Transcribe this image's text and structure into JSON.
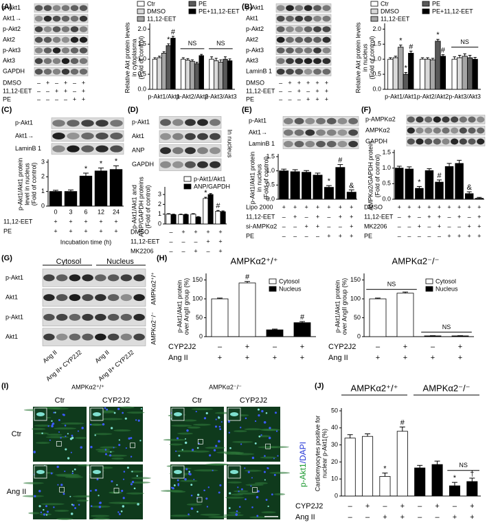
{
  "panel_letters": [
    "(A)",
    "(B)",
    "(C)",
    "(D)",
    "(E)",
    "(F)",
    "(G)",
    "(H)",
    "(I)",
    "(J)"
  ],
  "blots": [
    {
      "rows": [
        "p-Akt1",
        "Akt1→",
        "p-Akt2",
        "Akt2",
        "p-Akt3",
        "Akt3",
        "GAPDH"
      ],
      "conditions": [
        {
          "label": "DMSO",
          "values": [
            "–",
            "+",
            "–",
            "+",
            "–",
            "+"
          ]
        },
        {
          "label": "11,12-EET",
          "values": [
            "–",
            "–",
            "+",
            "+",
            "–",
            "+"
          ]
        },
        {
          "label": "PE",
          "values": [
            "–",
            "–",
            "–",
            "–",
            "+",
            "+"
          ]
        }
      ]
    },
    {
      "rows": [
        "p-Akt1",
        "Akt1",
        "p-Akt2",
        "Akt2",
        "p-Akt3",
        "Akt3",
        "LaminB 1"
      ],
      "conditions": [
        {
          "label": "DMSO",
          "values": [
            "–",
            "+",
            "+",
            "+",
            "+",
            "+"
          ]
        },
        {
          "label": "11,12-EET",
          "values": [
            "–",
            "–",
            "+",
            "–",
            "+",
            "+"
          ]
        },
        {
          "label": "PE",
          "values": [
            "–",
            "–",
            "–",
            "+",
            "+",
            "+"
          ]
        }
      ]
    },
    {
      "rows": [
        "p-Akt1",
        "Akt1→",
        "LaminB 1"
      ]
    },
    {
      "rows": [
        "p-Akt1",
        "Akt1",
        "ANP",
        "GAPDH"
      ],
      "note": "In nucleus"
    },
    {
      "rows": [
        "p-Akt1",
        "Akt1→",
        "LaminB 1"
      ]
    },
    {
      "rows": [
        "p-AMPKα2",
        "AMPKα2",
        "GAPDH"
      ]
    },
    {
      "rows": [
        "p-Akt1",
        "Akt1",
        "p-Akt1",
        "Akt1"
      ],
      "headers": [
        "Cytosol",
        "Nucleus"
      ],
      "groups": [
        "AMPKα2⁺/⁺",
        "AMPKα2⁻/⁻"
      ],
      "lane_labels": [
        "Ang II",
        "Ang II+ CYP2J2",
        "Ang II",
        "Ang II+ CYP2J2"
      ]
    }
  ],
  "chart_data": [
    {
      "type": "bar",
      "ylabel": [
        "Relative Akt protein levels",
        "in cytoplasma",
        "(Fold of control)"
      ],
      "categories": [
        "p-Akt1/Akt1",
        "p-Akt2/Akt2",
        "p-Akt3/Akt3"
      ],
      "ylim": [
        0,
        2.1
      ],
      "yticks": [
        {
          "value": 0,
          "label": "0.0"
        },
        0.5,
        {
          "value": 1,
          "label": "1.0"
        },
        1.5,
        {
          "value": 2,
          "label": "2.0"
        }
      ],
      "series": [
        {
          "name": "Ctr",
          "color": "#ffffff",
          "values": [
            1.0,
            1.0,
            1.0
          ],
          "errors": [
            0.05,
            0.05,
            0.08
          ]
        },
        {
          "name": "DMSO",
          "color": "#d9d9d9",
          "values": [
            1.05,
            0.97,
            0.95
          ],
          "errors": [
            0.05,
            0.05,
            0.08
          ]
        },
        {
          "name": "11,12-EET",
          "color": "#a6a6a6",
          "values": [
            1.2,
            0.93,
            0.9
          ],
          "errors": [
            0.05,
            0.05,
            0.08
          ]
        },
        {
          "name": "PE",
          "color": "#595959",
          "values": [
            1.45,
            0.85,
            1.0
          ],
          "errors": [
            0.06,
            0.05,
            0.08
          ],
          "marks": [
            "*",
            null,
            null
          ]
        },
        {
          "name": "PE+11,12-EET",
          "color": "#000000",
          "values": [
            1.7,
            1.12,
            0.95
          ],
          "errors": [
            0.06,
            0.04,
            0.06
          ],
          "marks": [
            "#",
            null,
            null
          ]
        }
      ],
      "brackets": [
        "NS",
        "NS"
      ]
    },
    {
      "type": "bar",
      "ylabel": [
        "Relative Akt protein levels",
        "in nucleus",
        "(Fold of control)"
      ],
      "categories": [
        "p-Akt1/Akt1",
        "p-Akt2/Akt2",
        "p-Akt3/Akt3"
      ],
      "ylim": [
        0,
        2.1
      ],
      "yticks": [
        {
          "value": 0,
          "label": "0.0"
        },
        0.5,
        {
          "value": 1,
          "label": "1.0"
        },
        1.5,
        {
          "value": 2,
          "label": "2.0"
        }
      ],
      "series": [
        {
          "name": "Ctr",
          "color": "#ffffff",
          "values": [
            1.0,
            1.0,
            1.0
          ],
          "errors": [
            0.05,
            0.05,
            0.08
          ]
        },
        {
          "name": "DMSO",
          "color": "#d9d9d9",
          "values": [
            1.05,
            1.0,
            1.05
          ],
          "errors": [
            0.05,
            0.05,
            0.08
          ]
        },
        {
          "name": "11,12-EET",
          "color": "#a6a6a6",
          "values": [
            1.4,
            0.98,
            1.1
          ],
          "errors": [
            0.07,
            0.05,
            0.08
          ],
          "marks": [
            "*",
            null,
            null
          ]
        },
        {
          "name": "PE",
          "color": "#595959",
          "values": [
            0.5,
            1.6,
            1.05
          ],
          "errors": [
            0.06,
            0.06,
            0.08
          ],
          "marks": [
            "*",
            "*",
            null
          ]
        },
        {
          "name": "PE+11,12-EET",
          "color": "#000000",
          "values": [
            1.2,
            1.1,
            1.0
          ],
          "errors": [
            0.07,
            0.05,
            0.06
          ],
          "marks": [
            "#",
            "#",
            null
          ]
        }
      ],
      "brackets": [
        "NS"
      ]
    },
    {
      "type": "bar",
      "ylabel": [
        "p-Akt1/Akt1 protein",
        "level in nucleus",
        "(Fold of control)"
      ],
      "categories": [
        0,
        3,
        6,
        12,
        24
      ],
      "ylim": [
        0,
        3
      ],
      "yticks": [
        0,
        1,
        2,
        3
      ],
      "series": [
        {
          "color": "#000000",
          "values": [
            1.0,
            1.0,
            2.05,
            2.4,
            2.5
          ],
          "errors": [
            0.08,
            0.1,
            0.2,
            0.2,
            0.25
          ],
          "marks": [
            null,
            null,
            "*",
            "*",
            "*"
          ]
        }
      ],
      "conditions": [
        {
          "label": "11,12-EET",
          "values": [
            "+",
            "+",
            "+",
            "+",
            "+"
          ]
        },
        {
          "label": "PE",
          "values": [
            "+",
            "+",
            "+",
            "+",
            "+"
          ]
        }
      ],
      "xlabel": "Incubation time (h)"
    },
    {
      "type": "bar",
      "ylabel": [
        "p-Akt1/Akt1 and",
        "ANP/GAPDH proteins",
        "(Fold of control)"
      ],
      "ylim": [
        0,
        3.5
      ],
      "yticks": [
        0,
        1,
        2,
        3
      ],
      "series": [
        {
          "name": "p-Akt1/Akt1",
          "color": "#ffffff",
          "values": [
            1.0,
            0.95,
            1.0,
            2.6,
            1.3
          ],
          "errors": [
            0.05,
            0.05,
            0.05,
            0.12,
            0.08
          ],
          "marks": [
            null,
            null,
            null,
            "*",
            "#"
          ]
        },
        {
          "name": "ANP/GAPDH",
          "color": "#000000",
          "values": [
            0.95,
            0.95,
            0.7,
            3.0,
            1.25
          ],
          "errors": [
            0.05,
            0.05,
            0.05,
            0.1,
            0.08
          ]
        }
      ],
      "conditions": [
        {
          "label": "DMSO",
          "values": [
            "–",
            "+",
            "+",
            "+",
            "+"
          ]
        },
        {
          "label": "11,12-EET",
          "values": [
            "–",
            "–",
            "–",
            "+",
            "+"
          ]
        },
        {
          "label": "MK2206",
          "values": [
            "–",
            "–",
            "+",
            "–",
            "+"
          ]
        }
      ]
    },
    {
      "type": "bar",
      "ylabel": [
        "p-Akt1/Akt1 protein",
        "in nucleus",
        "(Fold of control)"
      ],
      "ylim": [
        0,
        1.5
      ],
      "yticks": [
        {
          "value": 0,
          "label": "0.0"
        },
        0.5,
        {
          "value": 1,
          "label": "1.0"
        },
        1.5
      ],
      "series": [
        {
          "color": "#000000",
          "values": [
            1.0,
            0.97,
            0.95,
            0.85,
            0.42,
            1.12,
            0.25
          ],
          "errors": [
            0.06,
            0.07,
            0.06,
            0.07,
            0.06,
            0.1,
            0.08
          ],
          "marks": [
            null,
            null,
            null,
            null,
            "*",
            "#",
            "&"
          ]
        }
      ],
      "conditions": [
        {
          "label": "Lipo 2000",
          "values": [
            "+",
            "+",
            "+",
            "+",
            "+",
            "+",
            "+"
          ]
        },
        {
          "label": "11,12-EET",
          "values": [
            "–",
            "+",
            "–",
            "+",
            "–",
            "+",
            "+"
          ]
        },
        {
          "label": "si-AMPKα2",
          "values": [
            "–",
            "–",
            "+",
            "+",
            "–",
            "–",
            "+"
          ]
        },
        {
          "label": "PE",
          "values": [
            "–",
            "–",
            "–",
            "–",
            "+",
            "+",
            "+"
          ]
        }
      ]
    },
    {
      "type": "bar",
      "ylabel": [
        "AMPKα2/GAPDH protein",
        "(Fold of control)"
      ],
      "ylim": [
        0,
        1.5
      ],
      "yticks": [
        {
          "value": 0,
          "label": "0.0"
        },
        0.5,
        {
          "value": 1,
          "label": "1.0"
        },
        1.5
      ],
      "series": [
        {
          "color": "#000000",
          "values": [
            1.0,
            0.97,
            0.35,
            0.92,
            0.55,
            1.05,
            1.15,
            0.18,
            0.03
          ],
          "errors": [
            0.06,
            0.07,
            0.06,
            0.06,
            0.07,
            0.1,
            0.1,
            0.06,
            0.03
          ],
          "marks": [
            null,
            null,
            "*",
            null,
            "#",
            null,
            null,
            "&",
            null
          ]
        }
      ],
      "conditions": [
        {
          "label": "DMSO",
          "values": [
            "+",
            "+",
            "+",
            "+",
            "+",
            "+",
            "+",
            "+",
            "+"
          ]
        },
        {
          "label": "11,12-EET",
          "values": [
            "–",
            "+",
            "–",
            "+",
            "+",
            "–",
            "+",
            "–",
            "+"
          ]
        },
        {
          "label": "MK2206",
          "values": [
            "–",
            "–",
            "+",
            "–",
            "+",
            "–",
            "–",
            "+",
            "+"
          ]
        },
        {
          "label": "PE",
          "values": [
            "–",
            "–",
            "–",
            "–",
            "–",
            "+",
            "+",
            "+",
            "+"
          ]
        }
      ]
    },
    {
      "type": "bar",
      "layout": "single",
      "titles": [
        "AMPKα2⁺/⁺"
      ],
      "ylabel": [
        "p-Akt1/Akt1 protein",
        "over AngII group (%)"
      ],
      "ylim": [
        0,
        160
      ],
      "yticks": [
        0,
        50,
        100,
        150
      ],
      "series": [
        {
          "name": "Cytosol",
          "color": "#ffffff",
          "values": [
            100,
            142,
            null,
            null
          ],
          "errors": [
            2,
            4,
            null,
            null
          ],
          "marks": [
            null,
            "#",
            null,
            null
          ]
        },
        {
          "name": "Nucleus",
          "color": "#000000",
          "values": [
            null,
            null,
            18,
            37
          ],
          "errors": [
            null,
            null,
            2,
            3
          ],
          "marks": [
            null,
            null,
            null,
            "#"
          ]
        }
      ],
      "conditions": [
        {
          "label": "CYP2J2",
          "values": [
            "–",
            "+",
            "–",
            "+"
          ]
        },
        {
          "label": "Ang II",
          "values": [
            "+",
            "+",
            "+",
            "+"
          ]
        }
      ]
    },
    {
      "type": "bar",
      "layout": "single",
      "titles": [
        "AMPKα2⁻/⁻"
      ],
      "ylabel": [
        "p-Akt1/Akt1 protein",
        "over AngII group (%)"
      ],
      "ylim": [
        0,
        160
      ],
      "yticks": [
        0,
        50,
        100,
        150
      ],
      "series": [
        {
          "name": "Cytosol",
          "color": "#ffffff",
          "values": [
            100,
            115,
            null,
            null
          ],
          "errors": [
            2,
            3,
            null,
            null
          ]
        },
        {
          "name": "Nucleus",
          "color": "#000000",
          "values": [
            null,
            null,
            2,
            2
          ],
          "errors": [
            null,
            null,
            0.5,
            0.5
          ]
        }
      ],
      "brackets": [
        "NS",
        "NS"
      ],
      "conditions": [
        {
          "label": "CYP2J2",
          "values": [
            "–",
            "+",
            "–",
            "+"
          ]
        },
        {
          "label": "Ang II",
          "values": [
            "+",
            "+",
            "+",
            "+"
          ]
        }
      ]
    },
    {
      "type": "bar",
      "layout": "single",
      "titles": [
        "AMPKα2⁺/⁺",
        "AMPKα2⁻/⁻"
      ],
      "ylabel": [
        "Cardiomyocytes positive for",
        "nuclear p-Akt1(%)"
      ],
      "ylim": [
        0,
        50
      ],
      "yticks": [
        0,
        10,
        20,
        30,
        40,
        50
      ],
      "series": [
        {
          "color": "#ffffff",
          "values": [
            34,
            35,
            11.5,
            38,
            null,
            null,
            null,
            null
          ],
          "errors": [
            2,
            1.5,
            2,
            2.5,
            null,
            null,
            null,
            null
          ],
          "marks": [
            null,
            null,
            "*",
            "#",
            null,
            null,
            null,
            null
          ]
        },
        {
          "color": "#000000",
          "values": [
            null,
            null,
            null,
            null,
            16.5,
            18.5,
            6,
            8.5
          ],
          "errors": [
            null,
            null,
            null,
            null,
            1.5,
            2,
            2,
            2
          ],
          "marks": [
            null,
            null,
            null,
            null,
            null,
            null,
            "*",
            "†"
          ]
        }
      ],
      "brackets": [
        "NS"
      ],
      "conditions": [
        {
          "label": "CYP2J2",
          "values": [
            "–",
            "+",
            "–",
            "+",
            "–",
            "+",
            "–",
            "+"
          ]
        },
        {
          "label": "Ang II",
          "values": [
            "–",
            "–",
            "+",
            "+",
            "–",
            "–",
            "+",
            "+"
          ]
        }
      ]
    }
  ],
  "micrograph": {
    "genotypes": [
      "AMPKα2⁺/⁺",
      "AMPKα2⁻/⁻"
    ],
    "columns": [
      "Ctr",
      "CYP2J2",
      "Ctr",
      "CYP2J2"
    ],
    "rows": [
      "Ctr",
      "Ang II"
    ],
    "stain": [
      "p-Akt1",
      "/DAPI"
    ]
  }
}
